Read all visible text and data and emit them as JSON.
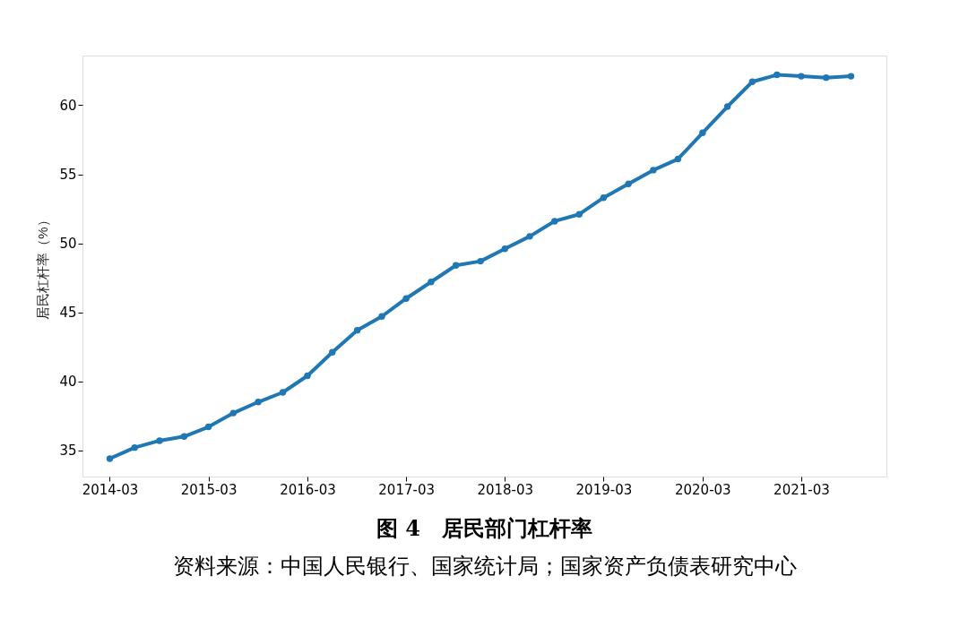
{
  "chart_data": {
    "type": "line",
    "title": "图 4　居民部门杠杆率",
    "ylabel": "居民杠杆率（%）",
    "annotations": [
      "资料来源：中国人民银行、国家统计局；国家资产负债表研究中心"
    ],
    "x": [
      "2014-03",
      "2014-06",
      "2014-09",
      "2014-12",
      "2015-03",
      "2015-06",
      "2015-09",
      "2015-12",
      "2016-03",
      "2016-06",
      "2016-09",
      "2016-12",
      "2017-03",
      "2017-06",
      "2017-09",
      "2017-12",
      "2018-03",
      "2018-06",
      "2018-09",
      "2018-12",
      "2019-03",
      "2019-06",
      "2019-09",
      "2019-12",
      "2020-03",
      "2020-06",
      "2020-09",
      "2020-12",
      "2021-03",
      "2021-06",
      "2021-09"
    ],
    "series": [
      {
        "color": "#1f77b4",
        "values": [
          34.4,
          35.2,
          35.7,
          36.0,
          36.7,
          37.7,
          38.5,
          39.2,
          40.4,
          42.1,
          43.7,
          44.7,
          46.0,
          47.2,
          48.4,
          48.7,
          49.6,
          50.5,
          51.6,
          52.1,
          53.3,
          54.3,
          55.3,
          56.1,
          58.0,
          59.9,
          61.7,
          62.2,
          62.1,
          62.0,
          62.1
        ]
      }
    ],
    "xlim": [
      "2013-11-20",
      "2022-01-10"
    ],
    "xticks": [
      "2014-03",
      "2015-03",
      "2016-03",
      "2017-03",
      "2018-03",
      "2019-03",
      "2020-03",
      "2021-03"
    ],
    "ylim": [
      33.1,
      63.6
    ],
    "yticks": [
      35,
      40,
      45,
      50,
      55,
      60
    ],
    "grid": false,
    "marker": "circle",
    "line_style": "solid"
  }
}
